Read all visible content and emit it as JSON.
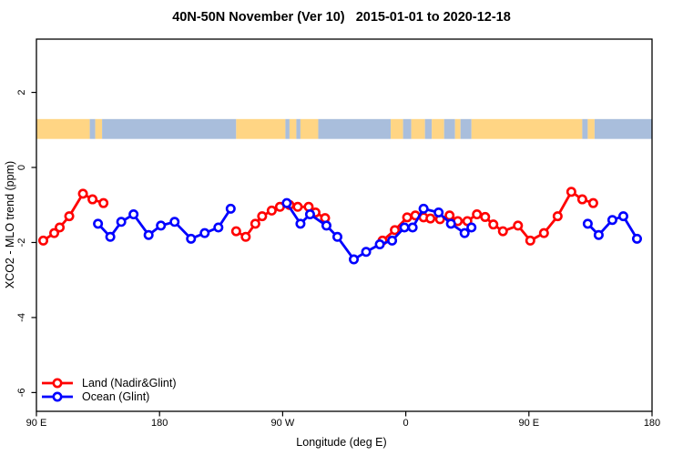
{
  "chart_data": {
    "type": "line",
    "title": "40N-50N November (Ver 10)   2015-01-01 to 2020-12-18",
    "xlabel": "Longitude (deg E)",
    "ylabel": "XCO2 - MLO trend (ppm)",
    "xlim": [
      90,
      540
    ],
    "ylim": [
      -6.5,
      3.42
    ],
    "grid": false,
    "x_ticks": [
      {
        "value": 90,
        "label": "90 E"
      },
      {
        "value": 180,
        "label": "180"
      },
      {
        "value": 270,
        "label": "90 W"
      },
      {
        "value": 360,
        "label": "0"
      },
      {
        "value": 450,
        "label": "90 E"
      },
      {
        "value": 540,
        "label": "180"
      }
    ],
    "y_ticks": [
      {
        "value": 2,
        "label": "2"
      },
      {
        "value": 0,
        "label": "0"
      },
      {
        "value": -2,
        "label": "-2"
      },
      {
        "value": -4,
        "label": "-4"
      },
      {
        "value": -6,
        "label": "-6"
      }
    ],
    "map_band": {
      "description": "40N-50N world-map strip drawn across the plot near y=+1",
      "y_top": 1.29,
      "y_bottom": 0.76,
      "land_color": "#FFD584",
      "ocean_color": "#A9BEDC",
      "segments": [
        {
          "from": 90,
          "to": 129,
          "type": "land"
        },
        {
          "from": 129,
          "to": 133,
          "type": "ocean"
        },
        {
          "from": 133,
          "to": 138,
          "type": "land"
        },
        {
          "from": 138,
          "to": 236,
          "type": "ocean"
        },
        {
          "from": 236,
          "to": 272,
          "type": "land"
        },
        {
          "from": 272,
          "to": 275,
          "type": "ocean"
        },
        {
          "from": 275,
          "to": 280,
          "type": "land"
        },
        {
          "from": 280,
          "to": 283,
          "type": "ocean"
        },
        {
          "from": 283,
          "to": 296,
          "type": "land"
        },
        {
          "from": 296,
          "to": 349,
          "type": "ocean"
        },
        {
          "from": 349,
          "to": 358,
          "type": "land"
        },
        {
          "from": 358,
          "to": 364,
          "type": "ocean"
        },
        {
          "from": 364,
          "to": 374,
          "type": "land"
        },
        {
          "from": 374,
          "to": 379,
          "type": "ocean"
        },
        {
          "from": 379,
          "to": 388,
          "type": "land"
        },
        {
          "from": 388,
          "to": 396,
          "type": "ocean"
        },
        {
          "from": 396,
          "to": 400,
          "type": "land"
        },
        {
          "from": 400,
          "to": 408,
          "type": "ocean"
        },
        {
          "from": 408,
          "to": 489,
          "type": "land"
        },
        {
          "from": 489,
          "to": 493,
          "type": "ocean"
        },
        {
          "from": 493,
          "to": 498,
          "type": "land"
        },
        {
          "from": 498,
          "to": 540,
          "type": "ocean"
        }
      ]
    },
    "series": [
      {
        "name": "Land (Nadir&Glint)",
        "color": "#FF0000",
        "marker": "open-circle",
        "segments": [
          [
            [
              95,
              -1.95
            ],
            [
              103,
              -1.75
            ],
            [
              107,
              -1.6
            ],
            [
              114,
              -1.3
            ],
            [
              124,
              -0.7
            ],
            [
              131,
              -0.85
            ],
            [
              139,
              -0.95
            ]
          ],
          [
            [
              236,
              -1.7
            ],
            [
              243,
              -1.85
            ],
            [
              250,
              -1.5
            ],
            [
              255,
              -1.3
            ],
            [
              262,
              -1.15
            ],
            [
              268,
              -1.05
            ],
            [
              275,
              -1.0
            ],
            [
              281,
              -1.05
            ],
            [
              289,
              -1.05
            ],
            [
              294,
              -1.2
            ],
            [
              301,
              -1.35
            ]
          ],
          [
            [
              343,
              -1.95
            ],
            [
              352,
              -1.67
            ],
            [
              361,
              -1.33
            ],
            [
              367,
              -1.28
            ],
            [
              373,
              -1.33
            ],
            [
              378,
              -1.36
            ],
            [
              385,
              -1.38
            ],
            [
              392,
              -1.28
            ],
            [
              398,
              -1.43
            ],
            [
              405,
              -1.43
            ],
            [
              412,
              -1.25
            ],
            [
              418,
              -1.32
            ],
            [
              424,
              -1.52
            ],
            [
              431,
              -1.7
            ],
            [
              442,
              -1.55
            ],
            [
              451,
              -1.95
            ],
            [
              461,
              -1.75
            ],
            [
              471,
              -1.3
            ],
            [
              481,
              -0.65
            ],
            [
              489,
              -0.85
            ],
            [
              497,
              -0.95
            ]
          ]
        ]
      },
      {
        "name": "Ocean (Glint)",
        "color": "#0000FF",
        "marker": "open-circle",
        "segments": [
          [
            [
              135,
              -1.5
            ],
            [
              144,
              -1.85
            ],
            [
              152,
              -1.45
            ],
            [
              161,
              -1.25
            ],
            [
              172,
              -1.8
            ],
            [
              181,
              -1.55
            ],
            [
              191,
              -1.45
            ],
            [
              203,
              -1.9
            ],
            [
              213,
              -1.75
            ],
            [
              223,
              -1.6
            ],
            [
              232,
              -1.1
            ]
          ],
          [
            [
              273,
              -0.95
            ],
            [
              283,
              -1.5
            ],
            [
              290,
              -1.25
            ],
            [
              302,
              -1.55
            ],
            [
              310,
              -1.85
            ],
            [
              322,
              -2.45
            ],
            [
              331,
              -2.25
            ],
            [
              341,
              -2.05
            ],
            [
              350,
              -1.95
            ],
            [
              359,
              -1.6
            ],
            [
              365,
              -1.6
            ],
            [
              373,
              -1.1
            ],
            [
              384,
              -1.2
            ],
            [
              393,
              -1.5
            ],
            [
              403,
              -1.75
            ],
            [
              408,
              -1.6
            ]
          ],
          [
            [
              493,
              -1.5
            ],
            [
              501,
              -1.8
            ],
            [
              511,
              -1.4
            ],
            [
              519,
              -1.3
            ],
            [
              529,
              -1.9
            ]
          ]
        ]
      }
    ],
    "legend": {
      "position": "bottom-left",
      "items": [
        "Land (Nadir&Glint)",
        "Ocean (Glint)"
      ]
    }
  }
}
